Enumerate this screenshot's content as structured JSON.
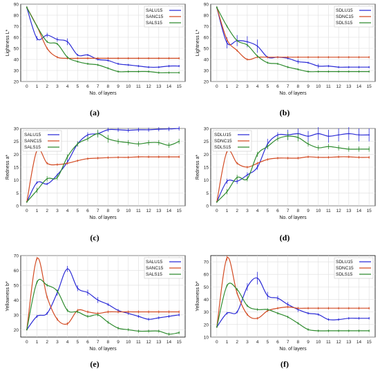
{
  "chart_data": [
    {
      "type": "line",
      "panel_label": "(a)",
      "xlabel": "No. of layers",
      "ylabel": "Lightness L*",
      "x": [
        0,
        1,
        2,
        3,
        4,
        5,
        6,
        7,
        8,
        9,
        10,
        11,
        12,
        13,
        14,
        15
      ],
      "xticks": [
        "0",
        "1",
        "2",
        "3",
        "4",
        "5",
        "6",
        "7",
        "8",
        "9",
        "10",
        "11",
        "12",
        "13",
        "14",
        "15"
      ],
      "ylim": [
        20,
        90
      ],
      "yticks": [
        20,
        30,
        40,
        50,
        60,
        70,
        80,
        90
      ],
      "legend_position": "top-right",
      "series": [
        {
          "name": "SALU15",
          "color": "#2b2bd6",
          "values": [
            87,
            59,
            62,
            58,
            56,
            44,
            44,
            40,
            39,
            36,
            35,
            34,
            33,
            33,
            34,
            34
          ],
          "err": [
            1,
            2,
            2,
            2,
            3,
            1,
            1,
            1,
            1,
            1,
            1,
            1,
            1,
            1,
            1,
            1
          ]
        },
        {
          "name": "SANC15",
          "color": "#d24a22",
          "values": [
            87,
            70,
            50,
            42,
            41,
            41,
            41,
            41,
            41,
            41,
            41,
            41,
            41,
            41,
            41,
            41
          ],
          "err": [
            1,
            1,
            1,
            1,
            1,
            1,
            1,
            1,
            1,
            1,
            1,
            1,
            1,
            1,
            1,
            1
          ]
        },
        {
          "name": "SALS15",
          "color": "#2e8b2e",
          "values": [
            87,
            70,
            56,
            54,
            42,
            38,
            36,
            35,
            32,
            29,
            29,
            29,
            29,
            28,
            28,
            28
          ],
          "err": [
            1,
            1,
            1,
            1,
            1,
            1,
            1,
            1,
            1,
            1,
            1,
            1,
            1,
            1,
            1,
            1
          ]
        }
      ]
    },
    {
      "type": "line",
      "panel_label": "(b)",
      "xlabel": "No. of layers",
      "ylabel": "Lightness L*",
      "x": [
        0,
        1,
        2,
        3,
        4,
        5,
        6,
        7,
        8,
        9,
        10,
        11,
        12,
        13,
        14,
        15
      ],
      "xticks": [
        "0",
        "1",
        "2",
        "3",
        "4",
        "5",
        "6",
        "7",
        "8",
        "9",
        "10",
        "11",
        "12",
        "13",
        "14",
        "15"
      ],
      "ylim": [
        20,
        90
      ],
      "yticks": [
        20,
        30,
        40,
        50,
        60,
        70,
        80,
        90
      ],
      "legend_position": "top-right",
      "series": [
        {
          "name": "SDLU15",
          "color": "#2b2bd6",
          "values": [
            87,
            55,
            57,
            56,
            52,
            42,
            42,
            41,
            38,
            37,
            34,
            34,
            33,
            33,
            33,
            33
          ],
          "err": [
            1,
            5,
            5,
            5,
            6,
            1,
            1,
            1,
            2,
            1,
            2,
            1,
            1,
            1,
            1,
            1
          ]
        },
        {
          "name": "SDNC15",
          "color": "#d24a22",
          "values": [
            87,
            58,
            48,
            40,
            42,
            42,
            42,
            42,
            42,
            42,
            42,
            42,
            42,
            42,
            42,
            42
          ],
          "err": [
            1,
            1,
            1,
            1,
            1,
            1,
            1,
            1,
            1,
            1,
            1,
            1,
            1,
            1,
            1,
            1
          ]
        },
        {
          "name": "SDLS15",
          "color": "#2e8b2e",
          "values": [
            87,
            70,
            57,
            53,
            43,
            37,
            36,
            33,
            31,
            29,
            29,
            29,
            29,
            29,
            29,
            29
          ],
          "err": [
            1,
            1,
            1,
            1,
            1,
            1,
            1,
            1,
            1,
            1,
            1,
            1,
            1,
            1,
            1,
            1
          ]
        }
      ]
    },
    {
      "type": "line",
      "panel_label": "(c)",
      "xlabel": "No. of layers",
      "ylabel": "Redness a*",
      "x": [
        0,
        1,
        2,
        3,
        4,
        5,
        6,
        7,
        8,
        9,
        10,
        11,
        12,
        13,
        14,
        15
      ],
      "xticks": [
        "0",
        "1",
        "2",
        "3",
        "4",
        "5",
        "6",
        "7",
        "8",
        "9",
        "10",
        "11",
        "12",
        "13",
        "14",
        "15"
      ],
      "ylim": [
        0,
        30
      ],
      "yticks": [
        0,
        5,
        10,
        15,
        20,
        25,
        30
      ],
      "legend_position": "top-left",
      "series": [
        {
          "name": "SALU15",
          "color": "#2b2bd6",
          "values": [
            1.5,
            9,
            8.5,
            12,
            17,
            24,
            27.5,
            28,
            29.5,
            29.5,
            29.3,
            29.5,
            29.5,
            29.7,
            29.8,
            30
          ],
          "err": [
            0.3,
            0.5,
            0.5,
            0.5,
            1,
            1,
            1,
            1,
            0.8,
            0.8,
            0.8,
            0.8,
            0.8,
            0.8,
            0.8,
            0.8
          ]
        },
        {
          "name": "SANC15",
          "color": "#d24a22",
          "values": [
            1.5,
            21.5,
            16.5,
            16,
            16.5,
            17.5,
            18.3,
            18.5,
            18.7,
            18.8,
            18.8,
            19,
            19,
            19,
            19,
            19
          ],
          "err": [
            0.3,
            0.5,
            0.5,
            0.5,
            0.5,
            0.5,
            0.5,
            0.5,
            0.5,
            0.5,
            0.5,
            0.5,
            0.5,
            0.5,
            0.5,
            0.5
          ]
        },
        {
          "name": "SALS15",
          "color": "#2e8b2e",
          "values": [
            1.5,
            6,
            10.5,
            11,
            19,
            24,
            26,
            28,
            26,
            25,
            24.5,
            24,
            24.5,
            24.5,
            23.5,
            25
          ],
          "err": [
            0.3,
            1,
            1,
            1,
            1,
            1,
            1,
            1.5,
            1.5,
            1,
            1,
            1,
            1,
            1,
            1,
            1
          ]
        }
      ]
    },
    {
      "type": "line",
      "panel_label": "(d)",
      "xlabel": "No. of layers",
      "ylabel": "Redness a*",
      "x": [
        0,
        1,
        2,
        3,
        4,
        5,
        6,
        7,
        8,
        9,
        10,
        11,
        12,
        13,
        14,
        15
      ],
      "xticks": [
        "0",
        "1",
        "2",
        "3",
        "4",
        "5",
        "6",
        "7",
        "8",
        "9",
        "10",
        "11",
        "12",
        "13",
        "14",
        "15"
      ],
      "ylim": [
        0,
        30
      ],
      "yticks": [
        0,
        5,
        10,
        15,
        20,
        25,
        30
      ],
      "legend_position": "top-left",
      "series": [
        {
          "name": "SDLU15",
          "color": "#2b2bd6",
          "values": [
            1.5,
            9.5,
            9.5,
            12,
            15,
            24,
            27.5,
            27.5,
            28,
            27,
            28,
            27,
            27.5,
            28,
            27.5,
            27.5
          ],
          "err": [
            0.3,
            1,
            1,
            1,
            1,
            2,
            1,
            2,
            2,
            2,
            2.5,
            2.5,
            2.5,
            2.5,
            2.5,
            2.5
          ]
        },
        {
          "name": "SDNC15",
          "color": "#d24a22",
          "values": [
            1.5,
            21,
            16.5,
            15,
            16.5,
            18,
            18.5,
            18.5,
            18.5,
            19,
            18.8,
            18.8,
            19,
            19,
            18.8,
            18.8
          ],
          "err": [
            0.3,
            0.5,
            0.5,
            0.5,
            0.5,
            0.5,
            0.5,
            0.5,
            0.5,
            0.5,
            0.5,
            0.5,
            0.5,
            0.5,
            0.5,
            0.5
          ]
        },
        {
          "name": "SDLS15",
          "color": "#2e8b2e",
          "values": [
            1.5,
            5.5,
            11,
            10.5,
            20,
            23,
            26,
            27,
            26.5,
            24,
            22.5,
            23,
            22.5,
            22,
            22,
            22
          ],
          "err": [
            0.3,
            1,
            1,
            1,
            1,
            1,
            1,
            1.5,
            1.5,
            1,
            1,
            1,
            1,
            1,
            1,
            1
          ]
        }
      ]
    },
    {
      "type": "line",
      "panel_label": "(e)",
      "xlabel": "No. of layers",
      "ylabel": "Yellowness b*",
      "x": [
        0,
        1,
        2,
        3,
        4,
        5,
        6,
        7,
        8,
        9,
        10,
        11,
        12,
        13,
        14,
        15
      ],
      "xticks": [
        "0",
        "1",
        "2",
        "3",
        "4",
        "5",
        "6",
        "7",
        "8",
        "9",
        "10",
        "11",
        "12",
        "13",
        "14",
        "15"
      ],
      "ylim": [
        15,
        70
      ],
      "yticks": [
        20,
        30,
        40,
        50,
        60,
        70
      ],
      "legend_position": "top-right",
      "series": [
        {
          "name": "SALU15",
          "color": "#2b2bd6",
          "values": [
            20,
            29,
            31,
            45,
            61,
            48,
            45,
            40,
            37,
            33,
            31,
            29,
            27,
            28,
            29,
            30
          ],
          "err": [
            0.5,
            1,
            1,
            2,
            2,
            2,
            2,
            2,
            1,
            1,
            1,
            1,
            1,
            1,
            1,
            1
          ]
        },
        {
          "name": "SANC15",
          "color": "#d24a22",
          "values": [
            20,
            68,
            42,
            27,
            24,
            33,
            32,
            31,
            32,
            32,
            32,
            32,
            32,
            32,
            32,
            32
          ],
          "err": [
            0.5,
            1,
            1,
            1,
            1,
            1,
            1,
            1,
            1,
            1,
            1,
            1,
            1,
            1,
            1,
            1
          ]
        },
        {
          "name": "SALS15",
          "color": "#2e8b2e",
          "values": [
            20,
            52,
            50,
            46,
            33,
            32,
            29,
            30,
            25,
            21,
            20,
            19,
            19,
            19,
            17,
            18
          ],
          "err": [
            0.5,
            1,
            1,
            1,
            1,
            1,
            1,
            1,
            1,
            1,
            1,
            1,
            1,
            1,
            1,
            1
          ]
        }
      ]
    },
    {
      "type": "line",
      "panel_label": "(f)",
      "xlabel": "No. of layers",
      "ylabel": "Yellowness b*",
      "x": [
        0,
        1,
        2,
        3,
        4,
        5,
        6,
        7,
        8,
        9,
        10,
        11,
        12,
        13,
        14,
        15
      ],
      "xticks": [
        "0",
        "1",
        "2",
        "3",
        "4",
        "5",
        "6",
        "7",
        "8",
        "9",
        "10",
        "11",
        "12",
        "13",
        "14",
        "15"
      ],
      "ylim": [
        10,
        75
      ],
      "yticks": [
        10,
        20,
        30,
        40,
        50,
        60,
        70
      ],
      "legend_position": "top-right",
      "series": [
        {
          "name": "SDLU15",
          "color": "#2b2bd6",
          "values": [
            18,
            29,
            30,
            50,
            57,
            43,
            41,
            36,
            32,
            29,
            28,
            24,
            24,
            25,
            25,
            25
          ],
          "err": [
            0.5,
            1,
            1,
            3,
            5,
            3,
            2,
            2,
            2,
            1,
            1,
            1,
            1,
            1,
            1,
            1
          ]
        },
        {
          "name": "SDNC15",
          "color": "#d24a22",
          "values": [
            18,
            73,
            45,
            28,
            25,
            31,
            33,
            34,
            33,
            33,
            33,
            33,
            33,
            33,
            33,
            33
          ],
          "err": [
            0.5,
            2,
            1,
            1,
            1,
            1,
            1,
            1,
            1,
            1,
            1,
            1,
            1,
            1,
            1,
            1
          ]
        },
        {
          "name": "SDLS15",
          "color": "#2e8b2e",
          "values": [
            18,
            51,
            48,
            35,
            32,
            32,
            29,
            26,
            21,
            16,
            15,
            15,
            15,
            15,
            15,
            15
          ],
          "err": [
            0.5,
            1,
            1,
            1,
            1,
            1,
            1,
            1,
            1,
            1,
            1,
            1,
            1,
            1,
            1,
            1
          ]
        }
      ]
    }
  ]
}
